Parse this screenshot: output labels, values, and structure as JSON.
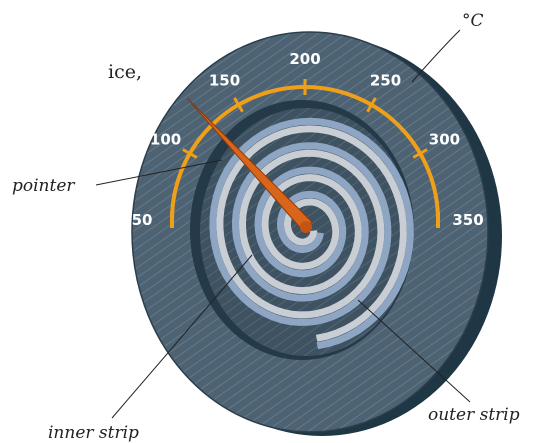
{
  "text_fragment": "ice,",
  "dial": {
    "unit": "°C",
    "scale": [
      50,
      100,
      150,
      200,
      250,
      300,
      350
    ]
  },
  "labels": {
    "pointer": "pointer",
    "inner_strip": "inner strip",
    "outer_strip": "outer strip"
  }
}
